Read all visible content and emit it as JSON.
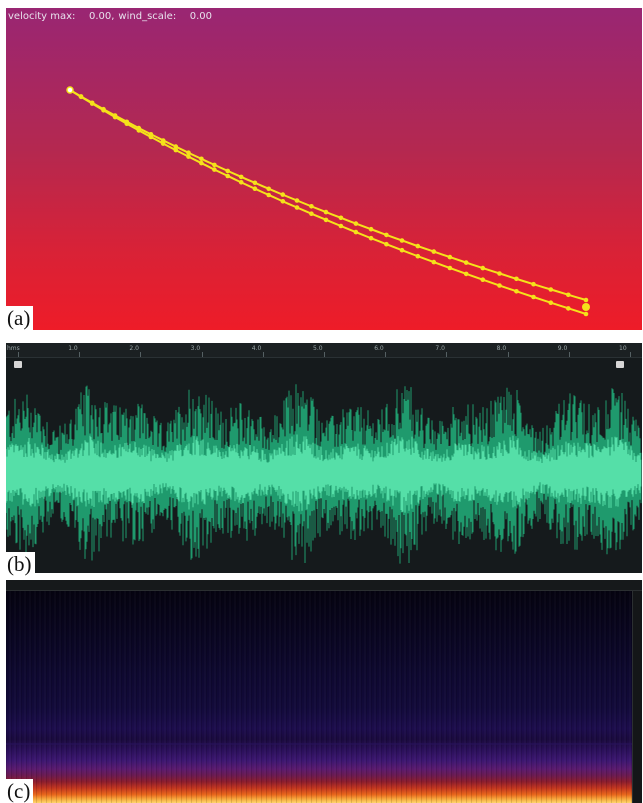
{
  "panel_a": {
    "label": "(a)",
    "hud_velocity_label": "velocity max:",
    "hud_velocity_value": "0.00,",
    "hud_wind_label": "wind_scale:",
    "hud_wind_value": "0.00",
    "colors": {
      "top": "#992673",
      "bottom": "#ee1c28",
      "strand": "#f5e21a"
    }
  },
  "panel_b": {
    "label": "(b)",
    "ruler_ticks": [
      "hms",
      "1.0",
      "2.0",
      "3.0",
      "4.0",
      "5.0",
      "6.0",
      "7.0",
      "8.0",
      "9.0",
      "10"
    ],
    "colors": {
      "background": "#151a1c",
      "wave": "#39c891"
    }
  },
  "panel_c": {
    "label": "(c)",
    "colors": {
      "low": "#050310",
      "mid": "#3c1670",
      "high": "#ffd66a"
    }
  }
}
